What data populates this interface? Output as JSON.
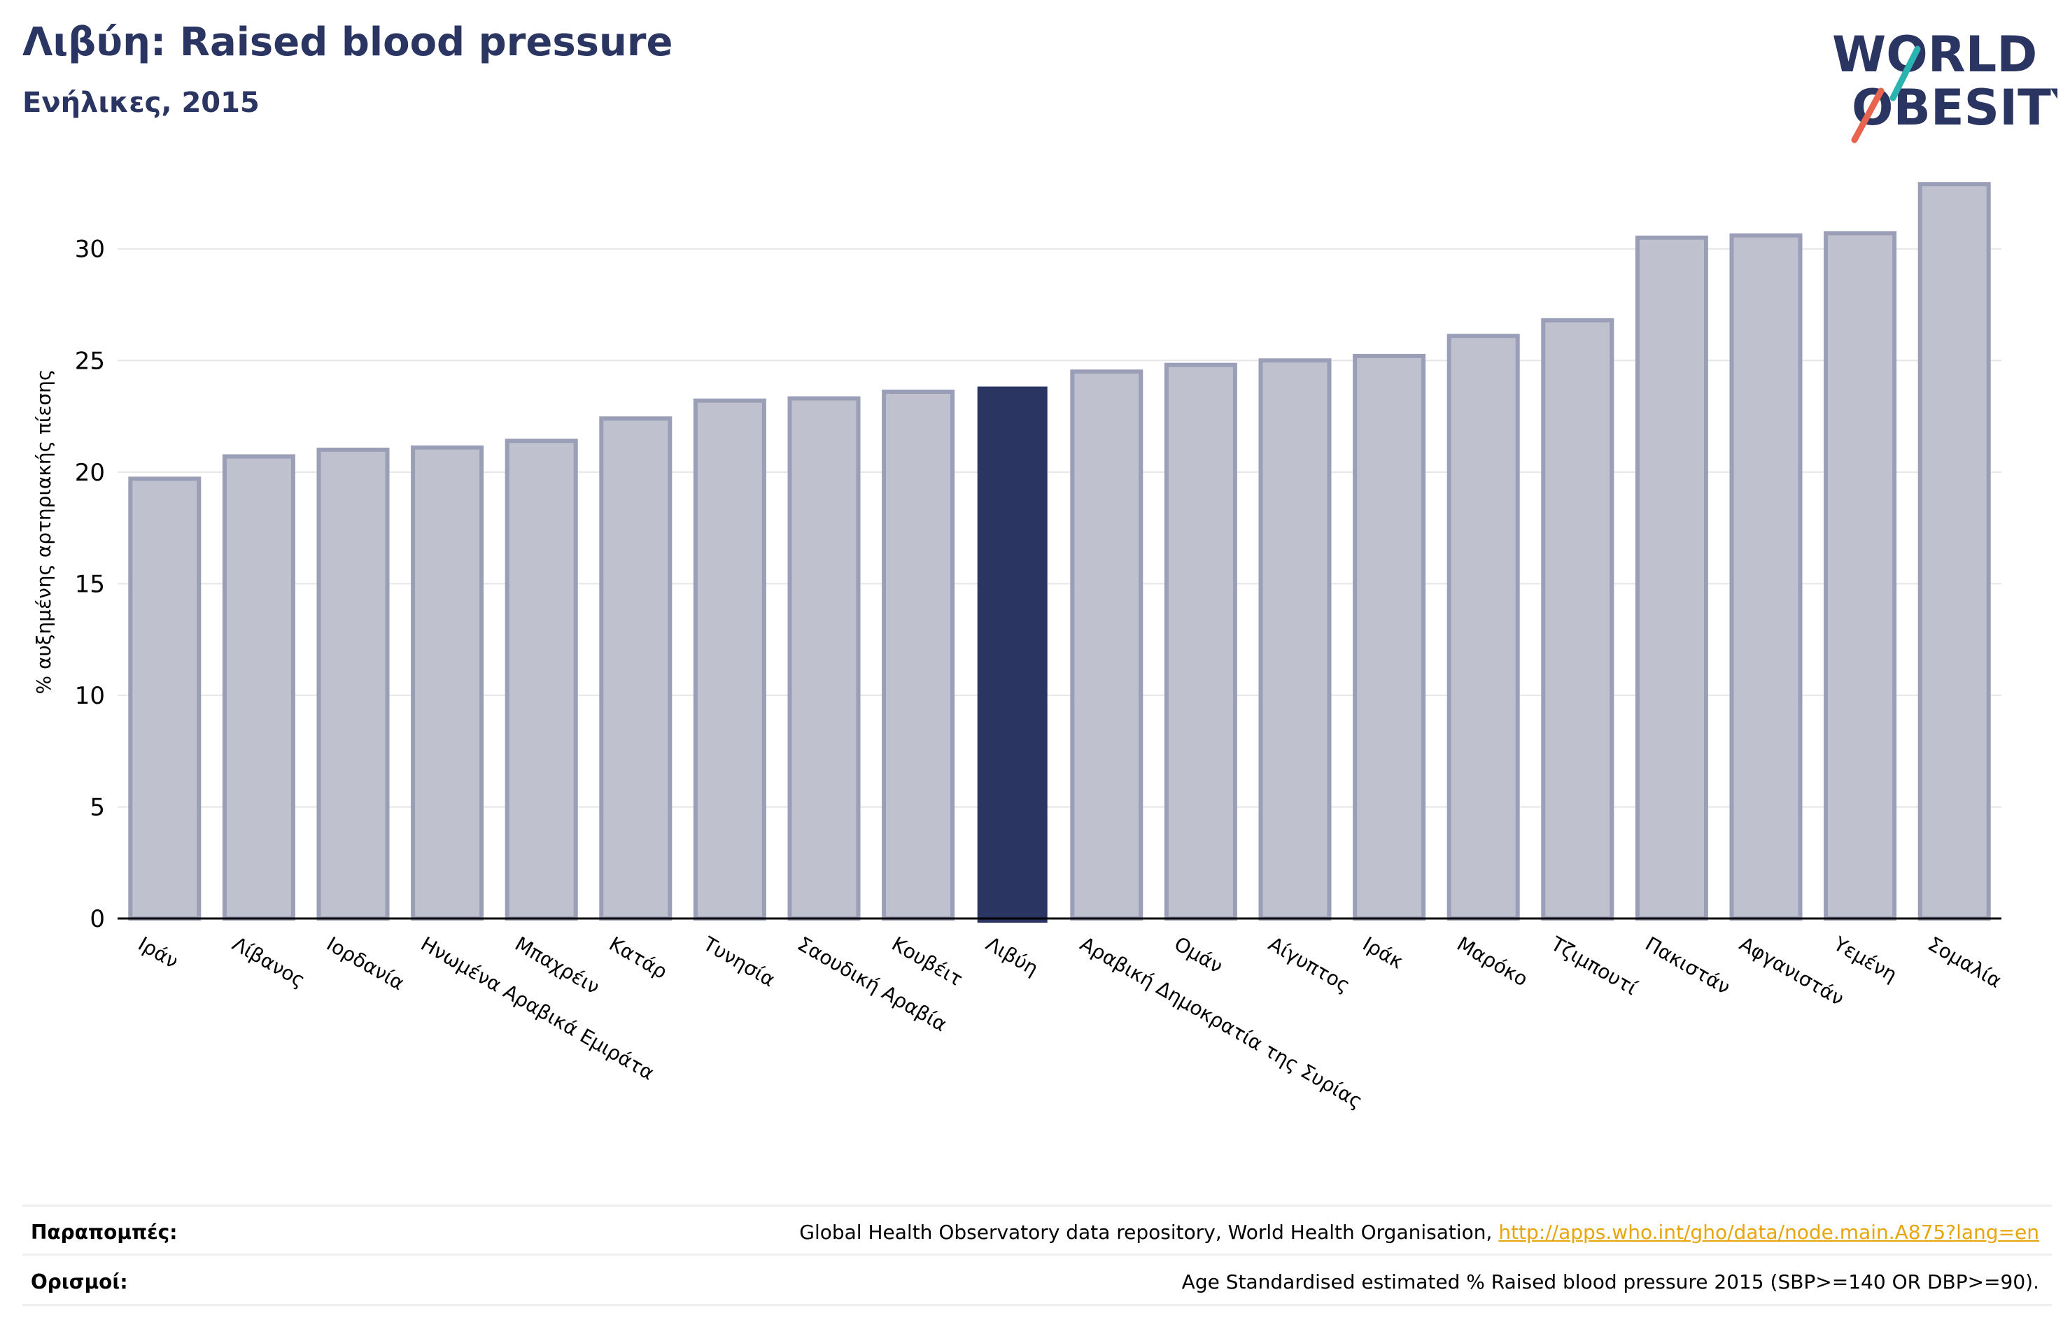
{
  "header": {
    "title": "Λιβύη: Raised blood pressure",
    "subtitle": "Ενήλικες, 2015"
  },
  "logo": {
    "line1": "WORLD",
    "line2": "OBESITY"
  },
  "chart_data": {
    "type": "bar",
    "title": "",
    "xlabel": "",
    "ylabel": "% αυξημένης αρτηριακής πίεσης",
    "ylim": [
      0,
      33
    ],
    "yticks": [
      "0",
      "5",
      "10",
      "15",
      "20",
      "25",
      "30"
    ],
    "grid": true,
    "highlight": "Λιβύη",
    "categories": [
      "Ιράν",
      "Λίβανος",
      "Ιορδανία",
      "Ηνωμένα Αραβικά Εμιράτα",
      "Μπαχρέιν",
      "Κατάρ",
      "Τυνησία",
      "Σαουδική Αραβία",
      "Κουβέιτ",
      "Λιβύη",
      "Αραβική Δημοκρατία της Συρίας",
      "Ομάν",
      "Αίγυπτος",
      "Ιράκ",
      "Μαρόκο",
      "Τζιμπουτί",
      "Πακιστάν",
      "Αφγανιστάν",
      "Υεμένη",
      "Σομαλία"
    ],
    "values": [
      19.7,
      20.7,
      21.0,
      21.1,
      21.4,
      22.4,
      23.2,
      23.3,
      23.6,
      23.8,
      24.5,
      24.8,
      25.0,
      25.2,
      26.1,
      26.8,
      30.5,
      30.6,
      30.7,
      32.9
    ],
    "colors": {
      "bar": "#2b3561",
      "bar_muted_fill": "#bfc1ce",
      "bar_muted_stroke": "#9a9eb6",
      "grid": "#e6e6e6",
      "axis": "#000000"
    }
  },
  "footer": {
    "references_label": "Παραπομπές:",
    "references_text": "Global Health Observatory data repository, World Health Organisation, ",
    "references_link": "http://apps.who.int/gho/data/node.main.A875?lang=en",
    "definitions_label": "Ορισμοί:",
    "definitions_text": "Age Standardised estimated % Raised blood pressure 2015 (SBP>=140 OR DBP>=90)."
  }
}
